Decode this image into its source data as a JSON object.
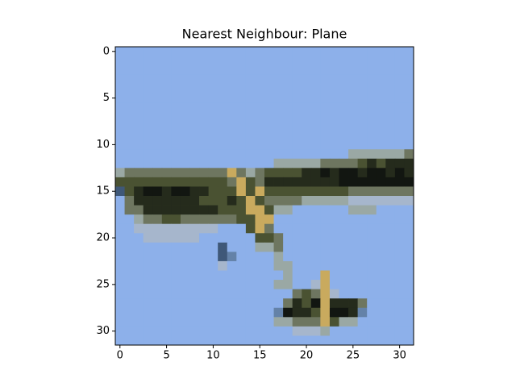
{
  "chart_data": {
    "type": "image",
    "title": "Nearest Neighbour: Plane",
    "xlim": [
      -0.5,
      31.5
    ],
    "ylim": [
      31.5,
      -0.5
    ],
    "xticks": [
      0,
      5,
      10,
      15,
      20,
      25,
      30
    ],
    "yticks": [
      0,
      5,
      10,
      15,
      20,
      25,
      30
    ],
    "palette": {
      ".": "#8db0ea",
      "l": "#a6b6cc",
      "g": "#9aa8a4",
      "m": "#6e7660",
      "o": "#4a5232",
      "d": "#252b1c",
      "k": "#121611",
      "y": "#c9aa5e",
      "e": "#6482a8",
      "n": "#3f5878"
    },
    "pixels": [
      "................................",
      "................................",
      "................................",
      "................................",
      "................................",
      "................................",
      "................................",
      "................................",
      "................................",
      "................................",
      "................................",
      ".........................ggggggm",
      ".................gggggmmmmododdd",
      "gmmmmmmmmmmmymgmooooddkdkkdkkdkd",
      "oooooooooooomyomddddddddkkkkkkkk",
      "nodkkdkkddoooyoyooooooooommmmmmm",
      ".mdddddddooodoyommmmggggglllllll",
      ".mmddddddddoooyyogg......ggg....",
      "..gmmoommmmmmooyy...............",
      "..lllllllll...oym...............",
      "...llllll......oom..............",
      "...........n...ggm..............",
      "...........ne....g..............",
      "...........l.....gg.............",
      "..................g...y.........",
      ".................gg..ly.........",
      "...................momyl........",
      "..................mdokydddm.....",
      ".................ekddoykkde.....",
      ".................ggmmmyogg......",
      "...................lllg.........",
      "................................"
    ]
  }
}
